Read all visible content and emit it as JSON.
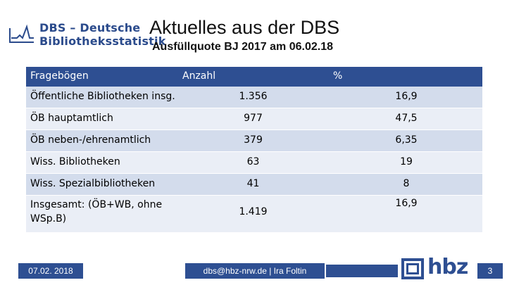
{
  "logo": {
    "line1": "DBS – Deutsche",
    "line2": "Bibliotheksstatistik"
  },
  "header": {
    "title": "Aktuelles aus der DBS",
    "subtitle": "Ausfüllquote  BJ 2017 am 06.02.18"
  },
  "table": {
    "columns": [
      "Fragebögen",
      "Anzahl",
      "%"
    ],
    "rows": [
      {
        "label": "Öffentliche Bibliotheken insg.",
        "count": "1.356",
        "pct": "16,9"
      },
      {
        "label": "ÖB hauptamtlich",
        "count": "977",
        "pct": "47,5"
      },
      {
        "label": "ÖB neben-/ehrenamtlich",
        "count": "379",
        "pct": "6,35"
      },
      {
        "label": "Wiss. Bibliotheken",
        "count": "63",
        "pct": "19"
      },
      {
        "label": "Wiss. Spezialbibliotheken",
        "count": "41",
        "pct": "8"
      },
      {
        "label": "Insgesamt: (ÖB+WB, ohne WSp.B)",
        "count": "1.419",
        "pct": "16,9"
      }
    ]
  },
  "footer": {
    "date": "07.02. 2018",
    "contact": "dbs@hbz-nrw.de | Ira Foltin",
    "brand": "hbz",
    "page": "3"
  },
  "colors": {
    "primary": "#2e4f92",
    "row_odd": "#d3dcec",
    "row_even": "#eaeef6"
  }
}
